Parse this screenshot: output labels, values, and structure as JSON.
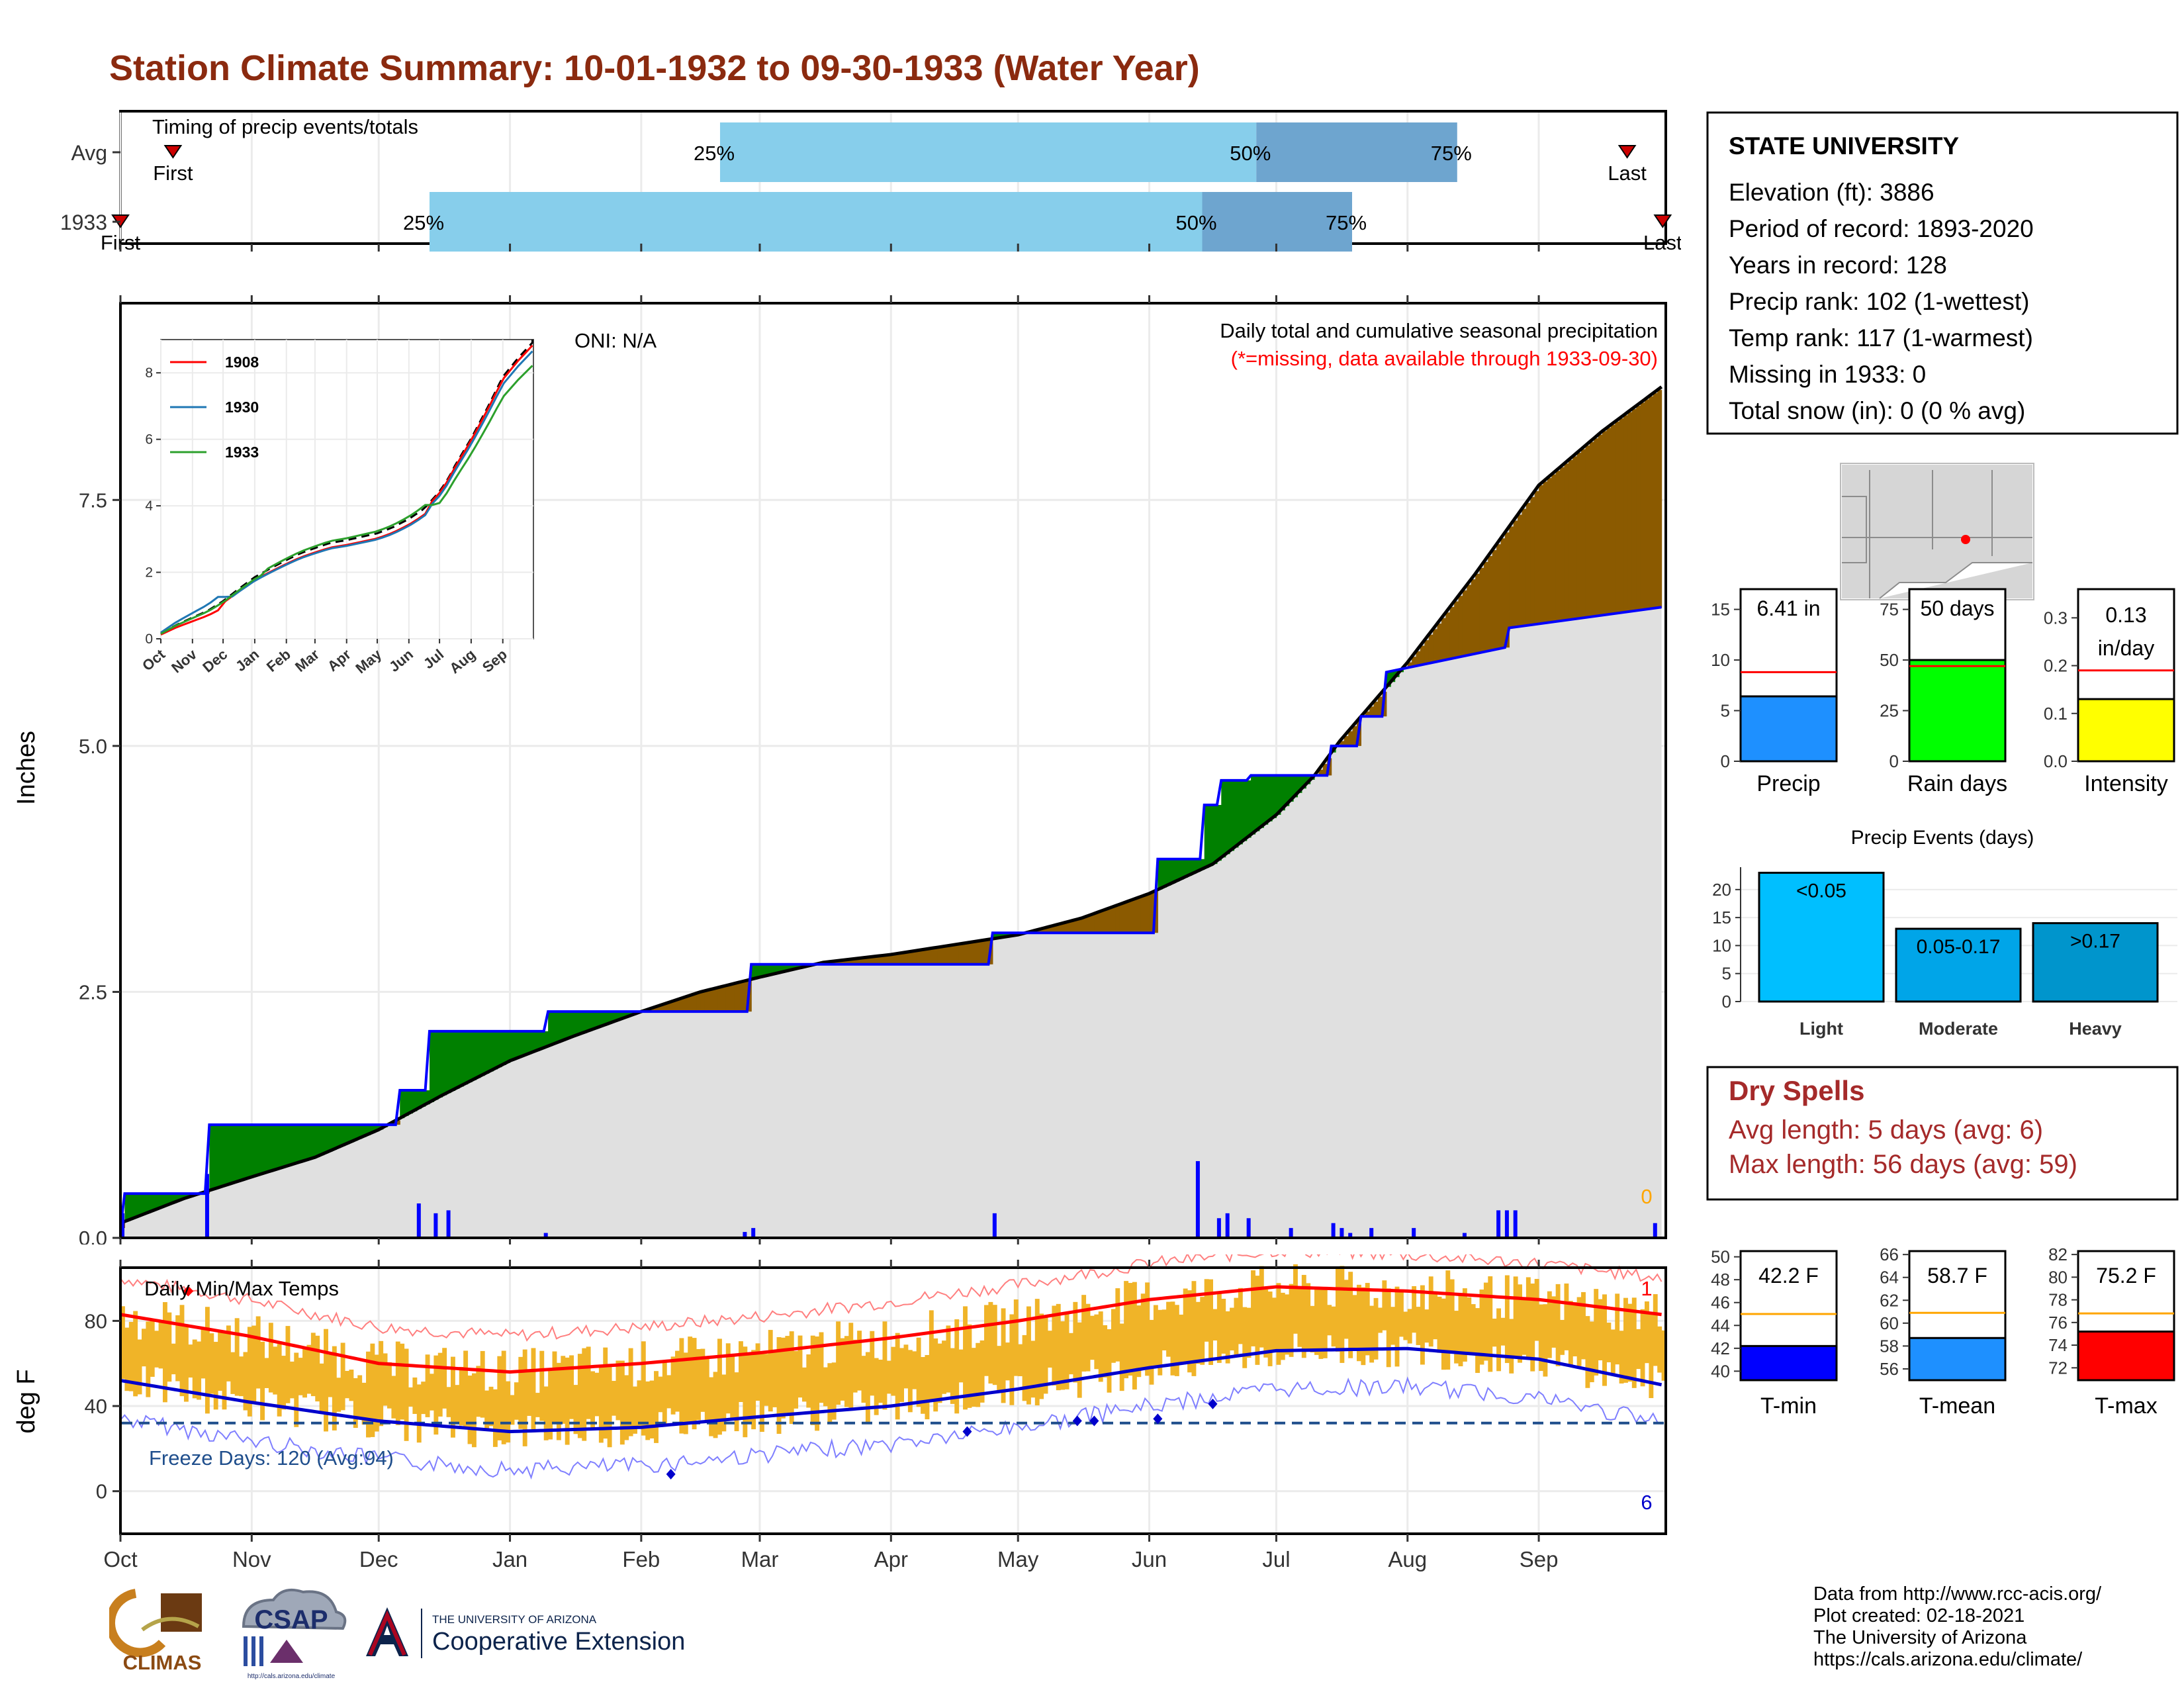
{
  "title": "Station Climate Summary: 10-01-1932 to 09-30-1933 (Water Year)",
  "colors": {
    "title": "#8b2a0f",
    "cum_fill": "#e0e0e0",
    "above_fill": "#008000",
    "below_fill": "#8b5a00",
    "line_current": "#0000ff",
    "bar_q1": "#87ceeb",
    "bar_q2": "#6ea5cf",
    "temp_bar": "#f0b428",
    "tmax_avg": "#ff0000",
    "tmin_avg": "#0000cc",
    "dry_spells": "#a52a2a"
  },
  "timing": {
    "title": "Timing of precip events/totals",
    "rows": [
      {
        "label": "Avg",
        "first": "First",
        "last": "Last",
        "p25": "25%",
        "p50": "50%",
        "p75": "75%",
        "first_frac": 0.034,
        "p25_frac": 0.388,
        "p50_frac": 0.735,
        "p75_frac": 0.865,
        "last_frac": 0.975
      },
      {
        "label": "1933",
        "first": "First",
        "last": "Last",
        "p25": "25%",
        "p50": "50%",
        "p75": "75%",
        "first_frac": 0.0,
        "p25_frac": 0.2,
        "p50_frac": 0.7,
        "p75_frac": 0.797,
        "last_frac": 0.998
      }
    ]
  },
  "months": [
    "Oct",
    "Nov",
    "Dec",
    "Jan",
    "Feb",
    "Mar",
    "Apr",
    "May",
    "Jun",
    "Jul",
    "Aug",
    "Sep"
  ],
  "month_days": [
    0,
    31,
    61,
    92,
    123,
    151,
    182,
    212,
    243,
    273,
    304,
    335
  ],
  "precip_panel": {
    "ylabel": "Inches",
    "yticks": [
      "0.0",
      "2.5",
      "5.0",
      "7.5"
    ],
    "oni": "ONI: N/A",
    "note1": "Daily total and cumulative seasonal precipitation",
    "note2": "(*=missing, data available through 1933-09-30)",
    "missing_count": "0"
  },
  "inset": {
    "yticks": [
      "0",
      "2",
      "4",
      "6",
      "8"
    ],
    "xticks": [
      "Oct",
      "Nov",
      "Dec",
      "Jan",
      "Feb",
      "Mar",
      "Apr",
      "May",
      "Jun",
      "Jul",
      "Aug",
      "Sep"
    ],
    "legend": [
      "1908",
      "1930",
      "1933"
    ]
  },
  "temp_panel": {
    "ylabel": "deg F",
    "title": "Daily Min/Max Temps",
    "yticks": [
      "0",
      "40",
      "80"
    ],
    "freeze": "Freeze Days: 120 (Avg:94)",
    "record_high_count": "1",
    "record_low_count": "6"
  },
  "station": {
    "name": "STATE UNIVERSITY",
    "lines": [
      "Elevation (ft): 3886",
      "Period of record: 1893-2020",
      "Years in record: 128",
      "Precip rank: 102 (1-wettest)",
      "Temp rank: 117 (1-warmest)",
      "Missing in 1933: 0",
      "Total snow (in): 0 (0 % avg)"
    ]
  },
  "precip_bars": [
    {
      "label": "Precip",
      "value_text": "6.41 in",
      "value": 6.41,
      "avg": 8.8,
      "ymax": 17,
      "ticks": [
        "0",
        "5",
        "10",
        "15"
      ],
      "tick_vals": [
        0,
        5,
        10,
        15
      ],
      "color": "#1e90ff"
    },
    {
      "label": "Rain days",
      "value_text": "50 days",
      "value": 50,
      "avg": 47,
      "ymax": 85,
      "ticks": [
        "0",
        "25",
        "50",
        "75"
      ],
      "tick_vals": [
        0,
        25,
        50,
        75
      ],
      "color": "#00ff00"
    },
    {
      "label": "Intensity",
      "value_text": "0.13 in/day",
      "value_line1": "0.13",
      "value_line2": "in/day",
      "value": 0.13,
      "avg": 0.19,
      "ymax": 0.36,
      "ticks": [
        "0.0",
        "0.1",
        "0.2",
        "0.3"
      ],
      "tick_vals": [
        0,
        0.1,
        0.2,
        0.3
      ],
      "color": "#ffff00"
    }
  ],
  "events": {
    "title": "Precip Events (days)",
    "yticks": [
      "0",
      "5",
      "10",
      "15",
      "20"
    ],
    "bars": [
      {
        "label": "Light",
        "inside": "<0.05",
        "value": 23,
        "color": "#00bfff"
      },
      {
        "label": "Moderate",
        "inside": "0.05-0.17",
        "value": 13,
        "color": "#00a5e8"
      },
      {
        "label": "Heavy",
        "inside": ">0.17",
        "value": 14,
        "color": "#0095cc"
      }
    ]
  },
  "dry_spells": {
    "title": "Dry Spells",
    "avg": "Avg length: 5 days (avg: 6)",
    "max": "Max length: 56 days (avg: 59)"
  },
  "temp_bars": [
    {
      "label": "T-min",
      "value_text": "42.2 F",
      "value": 42.2,
      "avg": 45.0,
      "ymin": 39.5,
      "ymax": 50.5,
      "ticks": [
        "40",
        "42",
        "44",
        "46",
        "48",
        "50"
      ],
      "tick_vals": [
        40,
        42,
        44,
        46,
        48,
        50
      ],
      "color": "#0000ff"
    },
    {
      "label": "T-mean",
      "value_text": "58.7 F",
      "value": 58.7,
      "avg": 60.9,
      "ymin": 55.3,
      "ymax": 66.3,
      "ticks": [
        "56",
        "58",
        "60",
        "62",
        "64",
        "66"
      ],
      "tick_vals": [
        56,
        58,
        60,
        62,
        64,
        66
      ],
      "color": "#1e90ff"
    },
    {
      "label": "T-max",
      "value_text": "75.2 F",
      "value": 75.2,
      "avg": 76.8,
      "ymin": 71.2,
      "ymax": 82.3,
      "ticks": [
        "72",
        "74",
        "76",
        "78",
        "80",
        "82"
      ],
      "tick_vals": [
        72,
        74,
        76,
        78,
        80,
        82
      ],
      "color": "#ff0000"
    }
  ],
  "credits": [
    "Data from http://www.rcc-acis.org/",
    "Plot created: 02-18-2021",
    "The University of Arizona",
    "https://cals.arizona.edu/climate/"
  ],
  "logos": {
    "climas": "CLIMAS",
    "csap": "CSAP",
    "csap_url": "http://cals.arizona.edu/climate",
    "ua_small": "THE UNIVERSITY OF ARIZONA",
    "ua_big": "Cooperative Extension"
  },
  "chart_data": [
    {
      "type": "area",
      "title": "Daily total and cumulative seasonal precipitation",
      "ylabel": "Inches",
      "ylim": [
        0,
        9.5
      ],
      "x_unit": "day of water year (Oct 1 = 0)",
      "avg_cumulative": {
        "x": [
          0,
          15,
          31,
          46,
          61,
          76,
          92,
          107,
          123,
          137,
          151,
          166,
          182,
          197,
          212,
          227,
          243,
          258,
          273,
          282,
          288,
          304,
          320,
          335,
          350,
          364
        ],
        "y": [
          0.15,
          0.4,
          0.62,
          0.82,
          1.1,
          1.45,
          1.8,
          2.05,
          2.3,
          2.5,
          2.65,
          2.8,
          2.88,
          2.98,
          3.08,
          3.25,
          3.5,
          3.8,
          4.3,
          4.7,
          5.05,
          5.85,
          6.75,
          7.65,
          8.2,
          8.65
        ]
      },
      "current_cumulative": {
        "x": [
          0,
          1,
          20,
          21,
          55,
          56,
          65,
          66,
          72,
          73,
          100,
          101,
          148,
          149,
          205,
          206,
          244,
          245,
          255,
          256,
          259,
          260,
          266,
          267,
          285,
          286,
          292,
          293,
          298,
          299,
          327,
          328,
          364
        ],
        "y": [
          0.1,
          0.45,
          0.45,
          1.15,
          1.15,
          1.15,
          1.15,
          1.5,
          1.5,
          2.1,
          2.1,
          2.3,
          2.3,
          2.78,
          2.78,
          3.1,
          3.1,
          3.85,
          3.85,
          4.4,
          4.4,
          4.65,
          4.65,
          4.7,
          4.7,
          5.0,
          5.0,
          5.3,
          5.3,
          5.75,
          6.0,
          6.2,
          6.41
        ]
      },
      "daily_precip": {
        "x": [
          0,
          20,
          70,
          74,
          77,
          100,
          147,
          149,
          206,
          254,
          259,
          261,
          266,
          276,
          286,
          288,
          290,
          295,
          305,
          317,
          325,
          327,
          329,
          362
        ],
        "y": [
          0.25,
          0.65,
          0.35,
          0.25,
          0.28,
          0.05,
          0.06,
          0.1,
          0.25,
          0.78,
          0.2,
          0.25,
          0.2,
          0.1,
          0.15,
          0.1,
          0.05,
          0.1,
          0.1,
          0.05,
          0.28,
          0.28,
          0.28,
          0.15
        ]
      }
    },
    {
      "type": "line",
      "title": "Daily Min/Max Temps",
      "ylabel": "deg F",
      "ylim": [
        -20,
        105
      ],
      "avg_tmax": {
        "x": [
          0,
          30,
          61,
          92,
          123,
          151,
          182,
          212,
          243,
          273,
          304,
          335,
          364
        ],
        "y": [
          83,
          73,
          60,
          56,
          60,
          65,
          72,
          80,
          90,
          96,
          94,
          90,
          83
        ]
      },
      "avg_tmin": {
        "x": [
          0,
          30,
          61,
          92,
          123,
          151,
          182,
          212,
          243,
          273,
          304,
          335,
          364
        ],
        "y": [
          52,
          42,
          33,
          28,
          30,
          35,
          40,
          48,
          58,
          66,
          67,
          62,
          50
        ]
      },
      "freeze_line": 32
    }
  ]
}
